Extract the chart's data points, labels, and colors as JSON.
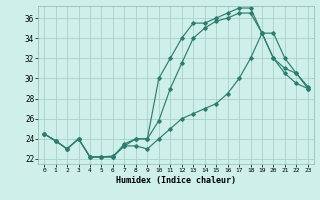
{
  "xlabel": "Humidex (Indice chaleur)",
  "background_color": "#cff0ea",
  "line_color": "#2d7d6e",
  "grid_color": "#a0ccc4",
  "xlim": [
    -0.5,
    23.5
  ],
  "ylim": [
    21.5,
    37.2
  ],
  "yticks": [
    22,
    24,
    26,
    28,
    30,
    32,
    34,
    36
  ],
  "xticks": [
    0,
    1,
    2,
    3,
    4,
    5,
    6,
    7,
    8,
    9,
    10,
    11,
    12,
    13,
    14,
    15,
    16,
    17,
    18,
    19,
    20,
    21,
    22,
    23
  ],
  "series": [
    {
      "x": [
        0,
        1,
        2,
        3,
        4,
        5,
        6,
        7,
        8,
        9,
        10,
        11,
        12,
        13,
        14,
        15,
        16,
        17,
        18,
        19,
        20,
        21,
        22,
        23
      ],
      "y": [
        24.5,
        23.8,
        23.0,
        24.0,
        22.2,
        22.2,
        22.2,
        23.5,
        24.0,
        24.0,
        30.0,
        32.0,
        34.0,
        35.5,
        35.5,
        36.0,
        36.5,
        37.0,
        37.0,
        34.5,
        32.0,
        30.5,
        29.5,
        29.0
      ]
    },
    {
      "x": [
        0,
        1,
        2,
        3,
        4,
        5,
        6,
        7,
        8,
        9,
        10,
        11,
        12,
        13,
        14,
        15,
        16,
        17,
        18,
        19,
        20,
        21,
        22,
        23
      ],
      "y": [
        24.5,
        23.8,
        23.0,
        24.0,
        22.2,
        22.2,
        22.3,
        23.3,
        24.0,
        24.0,
        25.8,
        29.0,
        31.5,
        34.0,
        35.0,
        35.7,
        36.0,
        36.5,
        36.5,
        34.5,
        32.0,
        31.0,
        30.5,
        29.2
      ]
    },
    {
      "x": [
        0,
        1,
        2,
        3,
        4,
        5,
        6,
        7,
        8,
        9,
        10,
        11,
        12,
        13,
        14,
        15,
        16,
        17,
        18,
        19,
        20,
        21,
        22,
        23
      ],
      "y": [
        24.5,
        23.8,
        23.0,
        24.0,
        22.2,
        22.2,
        22.2,
        23.3,
        23.3,
        23.0,
        24.0,
        25.0,
        26.0,
        26.5,
        27.0,
        27.5,
        28.5,
        30.0,
        32.0,
        34.5,
        34.5,
        32.0,
        30.5,
        29.0
      ]
    }
  ]
}
